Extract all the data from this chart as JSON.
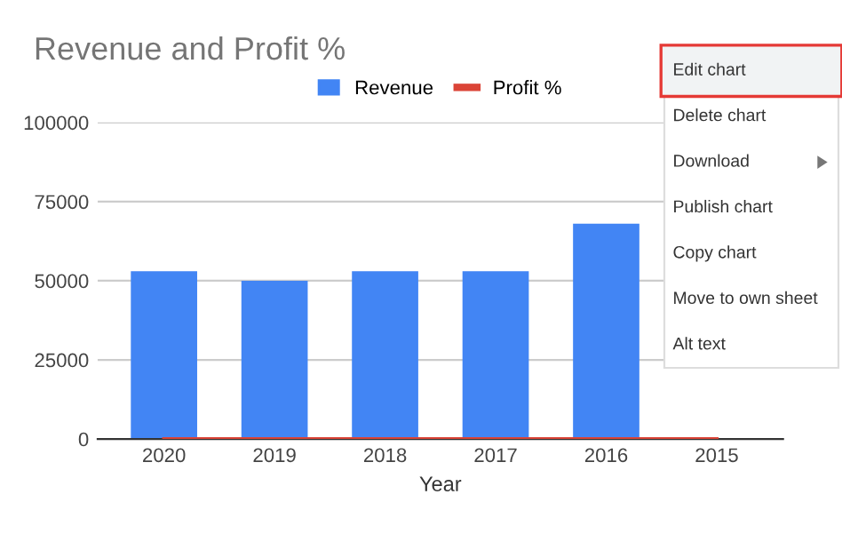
{
  "chart_data": {
    "type": "bar",
    "title": "Revenue and Profit %",
    "xlabel": "Year",
    "categories": [
      "2020",
      "2019",
      "2018",
      "2017",
      "2016",
      "2015"
    ],
    "series": [
      {
        "name": "Revenue",
        "color": "#4285f4",
        "values": [
          53000,
          50000,
          53000,
          53000,
          68000,
          null
        ]
      },
      {
        "name": "Profit %",
        "color": "#db4437",
        "type": "line",
        "values": [
          0,
          0,
          0,
          0,
          0,
          0
        ]
      }
    ],
    "ylim": [
      0,
      100000
    ],
    "yticks": [
      0,
      25000,
      50000,
      75000,
      100000
    ],
    "grid": "y",
    "legend": "top",
    "annotations": [
      "Edit chart",
      "Delete chart",
      "Download",
      "Publish chart",
      "Copy chart",
      "Move to own sheet",
      "Alt text"
    ]
  }
}
